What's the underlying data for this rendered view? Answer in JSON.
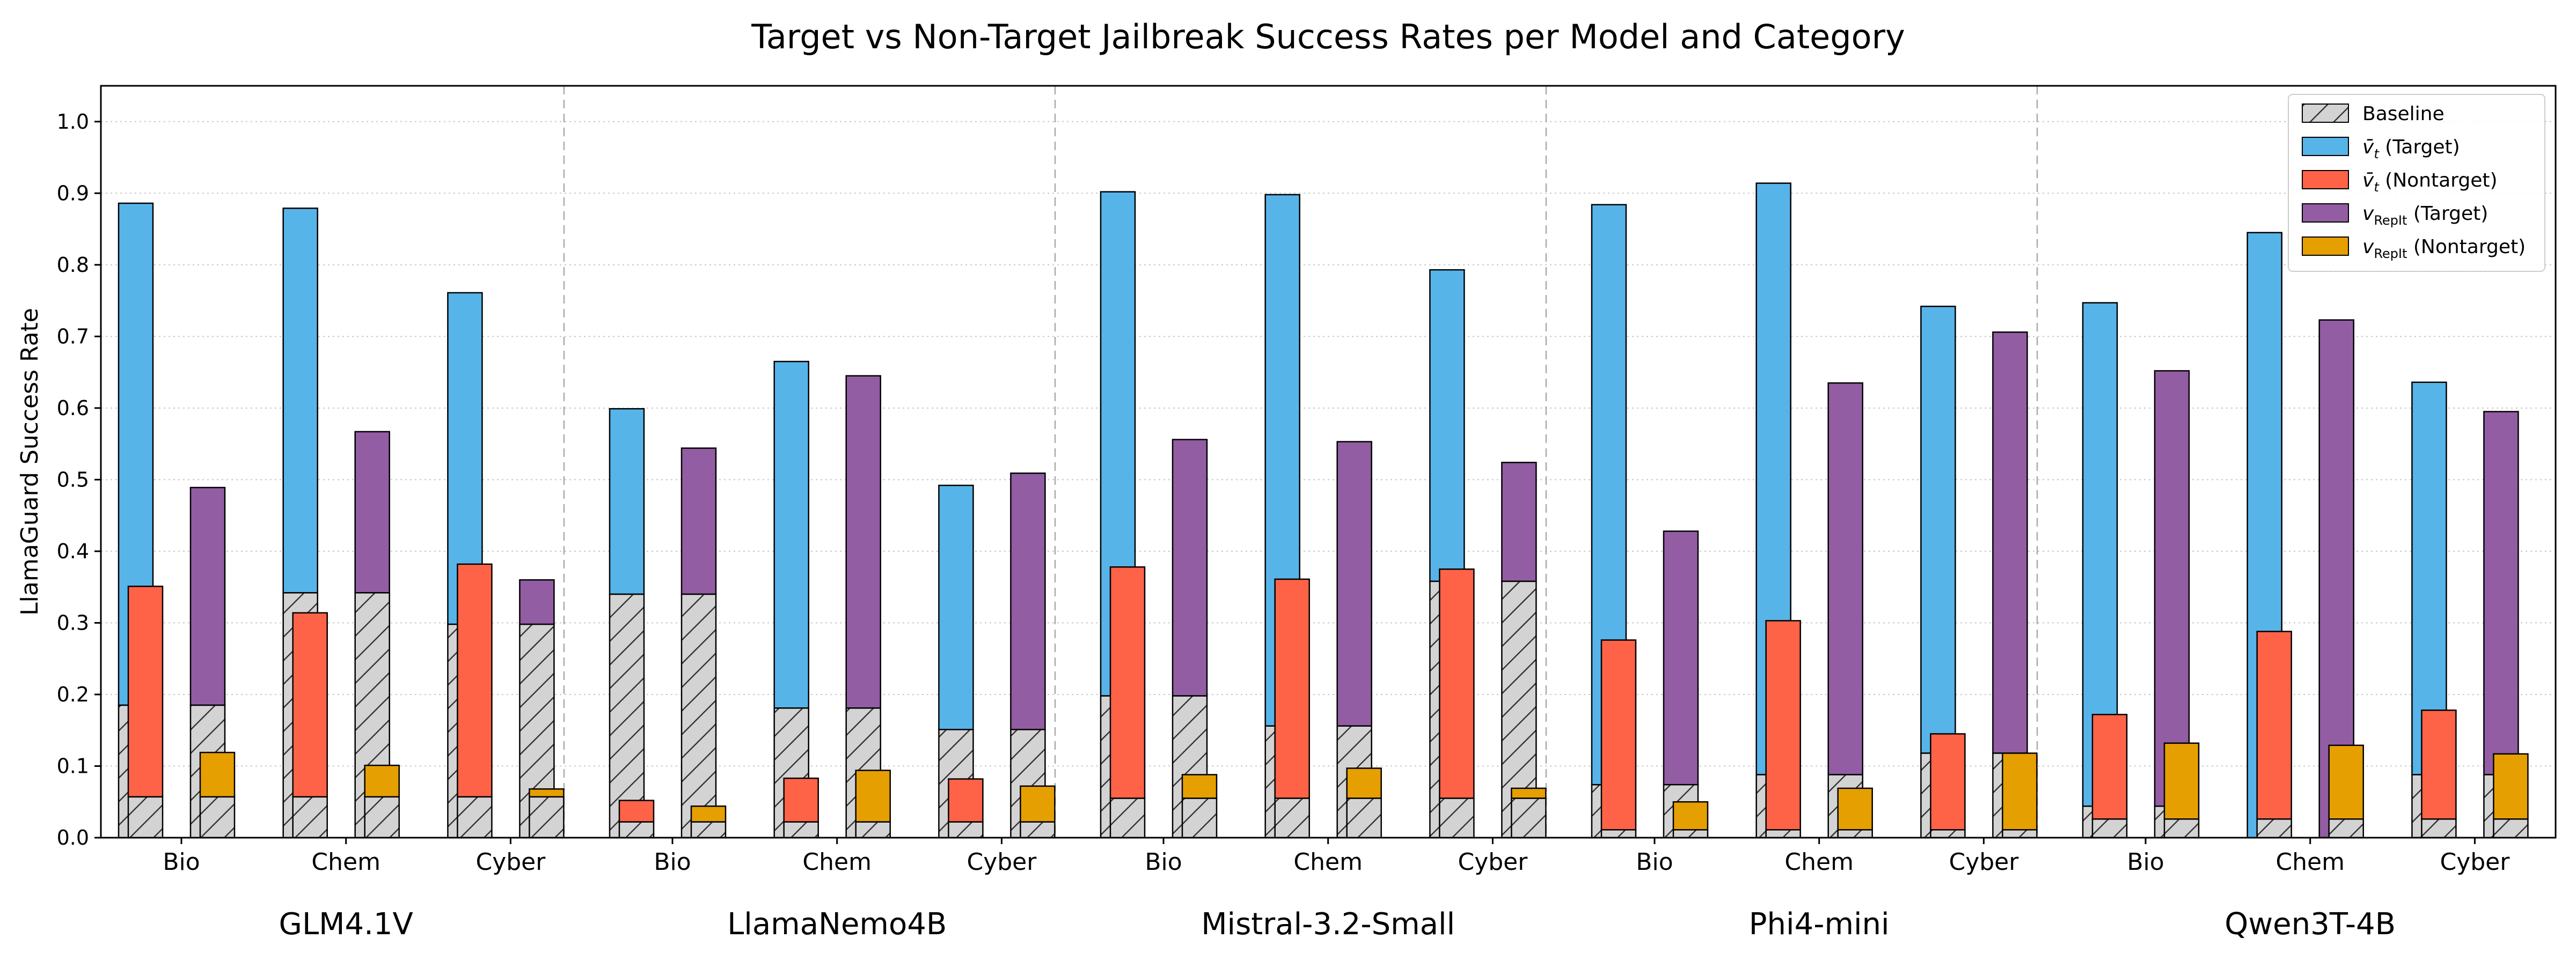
{
  "chart_data": {
    "type": "bar",
    "title": "Target vs Non-Target Jailbreak Success Rates per Model and Category",
    "ylabel": "LlamaGuard Success Rate",
    "xlabel": "",
    "ylim": [
      0,
      1.05
    ],
    "yticks": [
      0.0,
      0.1,
      0.2,
      0.3,
      0.4,
      0.5,
      0.6,
      0.7,
      0.8,
      0.9,
      1.0
    ],
    "ytick_labels": [
      "0.0",
      "0.1",
      "0.2",
      "0.3",
      "0.4",
      "0.5",
      "0.6",
      "0.7",
      "0.8",
      "0.9",
      "1.0"
    ],
    "grid": "horizontal dotted",
    "legend_position": "top-right",
    "categories": [
      "Bio",
      "Chem",
      "Cyber"
    ],
    "legend": {
      "baseline": "Baseline",
      "vt_target_sym": "v̄",
      "vt_target_sub": "t",
      "vt_target_rest": " (Target)",
      "vt_nontarget_sym": "v̄",
      "vt_nontarget_sub": "t",
      "vt_nontarget_rest": " (Nontarget)",
      "repit_target_sym": "v",
      "repit_target_sub": "RepIt",
      "repit_target_rest": " (Target)",
      "repit_nontarget_sym": "v",
      "repit_nontarget_sub": "RepIt",
      "repit_nontarget_rest": " (Nontarget)"
    },
    "colors": {
      "baseline": "#d3d3d3",
      "vt_target": "#56b4e9",
      "vt_nontarget": "#ff6347",
      "repit_target": "#925da3",
      "repit_nontarget": "#e69f00"
    },
    "models": [
      {
        "name": "GLM4.1V",
        "groups": [
          {
            "category": "Bio",
            "baseline_target": 0.185,
            "baseline_nontarget": 0.057,
            "vt_target": 0.886,
            "vt_nontarget": 0.351,
            "repit_target": 0.489,
            "repit_nontarget": 0.119
          },
          {
            "category": "Chem",
            "baseline_target": 0.342,
            "baseline_nontarget": 0.057,
            "vt_target": 0.879,
            "vt_nontarget": 0.314,
            "repit_target": 0.567,
            "repit_nontarget": 0.101
          },
          {
            "category": "Cyber",
            "baseline_target": 0.298,
            "baseline_nontarget": 0.057,
            "vt_target": 0.761,
            "vt_nontarget": 0.382,
            "repit_target": 0.36,
            "repit_nontarget": 0.068
          }
        ]
      },
      {
        "name": "LlamaNemo4B",
        "groups": [
          {
            "category": "Bio",
            "baseline_target": 0.34,
            "baseline_nontarget": 0.022,
            "vt_target": 0.599,
            "vt_nontarget": 0.052,
            "repit_target": 0.544,
            "repit_nontarget": 0.044
          },
          {
            "category": "Chem",
            "baseline_target": 0.181,
            "baseline_nontarget": 0.022,
            "vt_target": 0.665,
            "vt_nontarget": 0.083,
            "repit_target": 0.645,
            "repit_nontarget": 0.094
          },
          {
            "category": "Cyber",
            "baseline_target": 0.151,
            "baseline_nontarget": 0.022,
            "vt_target": 0.492,
            "vt_nontarget": 0.082,
            "repit_target": 0.509,
            "repit_nontarget": 0.072
          }
        ]
      },
      {
        "name": "Mistral-3.2-Small",
        "groups": [
          {
            "category": "Bio",
            "baseline_target": 0.198,
            "baseline_nontarget": 0.055,
            "vt_target": 0.902,
            "vt_nontarget": 0.378,
            "repit_target": 0.556,
            "repit_nontarget": 0.088
          },
          {
            "category": "Chem",
            "baseline_target": 0.156,
            "baseline_nontarget": 0.055,
            "vt_target": 0.898,
            "vt_nontarget": 0.361,
            "repit_target": 0.553,
            "repit_nontarget": 0.097
          },
          {
            "category": "Cyber",
            "baseline_target": 0.358,
            "baseline_nontarget": 0.055,
            "vt_target": 0.793,
            "vt_nontarget": 0.375,
            "repit_target": 0.524,
            "repit_nontarget": 0.069
          }
        ]
      },
      {
        "name": "Phi4-mini",
        "groups": [
          {
            "category": "Bio",
            "baseline_target": 0.074,
            "baseline_nontarget": 0.011,
            "vt_target": 0.884,
            "vt_nontarget": 0.276,
            "repit_target": 0.428,
            "repit_nontarget": 0.05
          },
          {
            "category": "Chem",
            "baseline_target": 0.088,
            "baseline_nontarget": 0.011,
            "vt_target": 0.914,
            "vt_nontarget": 0.303,
            "repit_target": 0.635,
            "repit_nontarget": 0.069
          },
          {
            "category": "Cyber",
            "baseline_target": 0.118,
            "baseline_nontarget": 0.011,
            "vt_target": 0.742,
            "vt_nontarget": 0.145,
            "repit_target": 0.706,
            "repit_nontarget": 0.118
          }
        ]
      },
      {
        "name": "Qwen3T-4B",
        "groups": [
          {
            "category": "Bio",
            "baseline_target": 0.044,
            "baseline_nontarget": 0.026,
            "vt_target": 0.747,
            "vt_nontarget": 0.172,
            "repit_target": 0.652,
            "repit_nontarget": 0.132
          },
          {
            "category": "Chem",
            "baseline_target": 0.0,
            "baseline_nontarget": 0.026,
            "vt_target": 0.845,
            "vt_nontarget": 0.288,
            "repit_target": 0.723,
            "repit_nontarget": 0.129
          },
          {
            "category": "Cyber",
            "baseline_target": 0.088,
            "baseline_nontarget": 0.026,
            "vt_target": 0.636,
            "vt_nontarget": 0.178,
            "repit_target": 0.595,
            "repit_nontarget": 0.117
          }
        ]
      }
    ]
  }
}
